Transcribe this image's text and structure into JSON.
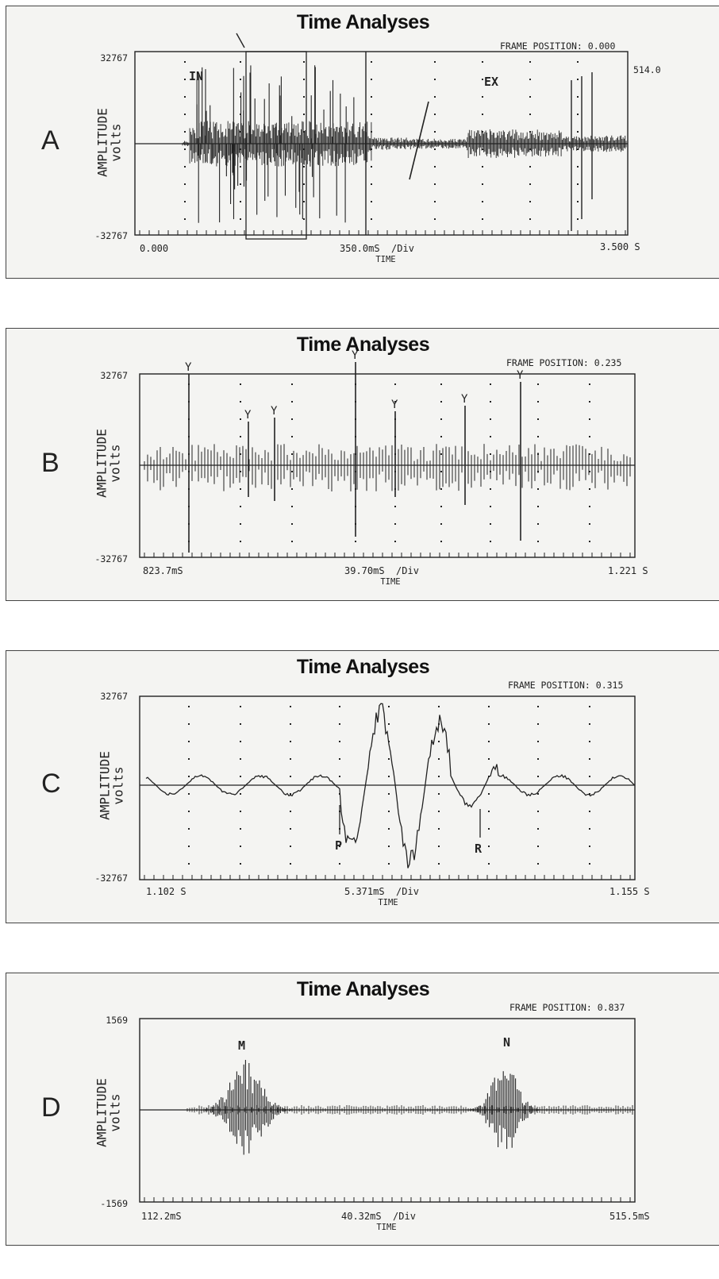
{
  "panels": [
    {
      "letter": "A",
      "title": "Time Analyses",
      "frame_position": "FRAME POSITION: 0.000",
      "ymax": "32767",
      "ymin": "-32767",
      "x_start": "0.000",
      "x_div": "350.0mS  /Div",
      "x_end": "3.500 S",
      "xlabel": "TIME",
      "ylabel": "AMPLITUDE",
      "yunit": "volts",
      "extra_value": "514.0",
      "markers": [
        "IN",
        "EX"
      ]
    },
    {
      "letter": "B",
      "title": "Time Analyses",
      "frame_position": "FRAME POSITION: 0.235",
      "ymax": "32767",
      "ymin": "-32767",
      "x_start": "823.7mS",
      "x_div": "39.70mS  /Div",
      "x_end": "1.221 S",
      "xlabel": "TIME",
      "ylabel": "AMPLITUDE",
      "yunit": "volts",
      "markers": []
    },
    {
      "letter": "C",
      "title": "Time Analyses",
      "frame_position": "FRAME POSITION: 0.315",
      "ymax": "32767",
      "ymin": "-32767",
      "x_start": "1.102 S",
      "x_div": "5.371mS  /Div",
      "x_end": "1.155 S",
      "xlabel": "TIME",
      "ylabel": "AMPLITUDE",
      "yunit": "volts",
      "markers": [
        "P",
        "R"
      ]
    },
    {
      "letter": "D",
      "title": "Time Analyses",
      "frame_position": "FRAME POSITION: 0.837",
      "ymax": "1569",
      "ymin": "-1569",
      "x_start": "112.2mS",
      "x_div": "40.32mS  /Div",
      "x_end": "515.5mS",
      "xlabel": "TIME",
      "ylabel": "AMPLITUDE",
      "yunit": "volts",
      "markers": [
        "M",
        "N"
      ]
    }
  ],
  "chart_data": [
    {
      "type": "line",
      "title": "Time Analyses",
      "xlabel": "TIME",
      "ylabel": "AMPLITUDE volts",
      "ylim": [
        -32767,
        32767
      ],
      "x_range_labels": [
        "0.000",
        "3.500 S"
      ],
      "x_division": "350.0mS /Div",
      "grid": "dotted vertical",
      "annotations": [
        "IN",
        "EX",
        "514.0",
        "FRAME POSITION: 0.000"
      ],
      "series": [
        {
          "description_values": "dense lung-sound waveform with crackle spikes"
        }
      ]
    },
    {
      "type": "line",
      "title": "Time Analyses",
      "xlabel": "TIME",
      "ylabel": "AMPLITUDE volts",
      "ylim": [
        -32767,
        32767
      ],
      "x_range_labels": [
        "823.7mS",
        "1.221 S"
      ],
      "x_division": "39.70mS /Div",
      "grid": "dotted vertical",
      "annotations": [
        "FRAME POSITION: 0.235"
      ]
    },
    {
      "type": "line",
      "title": "Time Analyses",
      "xlabel": "TIME",
      "ylabel": "AMPLITUDE volts",
      "ylim": [
        -32767,
        32767
      ],
      "x_range_labels": [
        "1.102 S",
        "1.155 S"
      ],
      "x_division": "5.371mS /Div",
      "grid": "dotted vertical",
      "annotations": [
        "P",
        "R",
        "FRAME POSITION: 0.315"
      ]
    },
    {
      "type": "line",
      "title": "Time Analyses",
      "xlabel": "TIME",
      "ylabel": "AMPLITUDE volts",
      "ylim": [
        -1569,
        1569
      ],
      "x_range_labels": [
        "112.2mS",
        "515.5mS"
      ],
      "x_division": "40.32mS /Div",
      "grid": "none",
      "annotations": [
        "M",
        "N",
        "FRAME POSITION: 0.837"
      ]
    }
  ]
}
